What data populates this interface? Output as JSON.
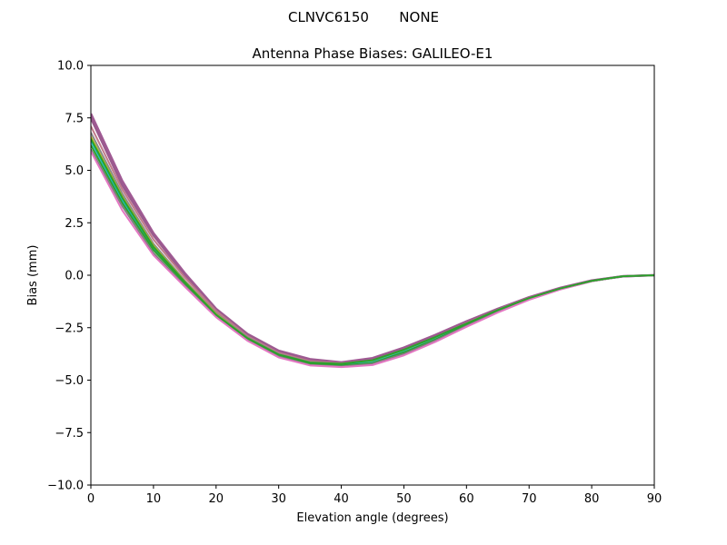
{
  "suptitle": "CLNVC6150       NONE",
  "chart_data": {
    "type": "line",
    "title": "Antenna Phase Biases: GALILEO-E1",
    "xlabel": "Elevation angle (degrees)",
    "ylabel": "Bias (mm)",
    "xlim": [
      0,
      90
    ],
    "ylim": [
      -10,
      10
    ],
    "xticks": [
      0,
      10,
      20,
      30,
      40,
      50,
      60,
      70,
      80,
      90
    ],
    "yticks": [
      -10.0,
      -7.5,
      -5.0,
      -2.5,
      0.0,
      2.5,
      5.0,
      7.5,
      10.0
    ],
    "xtick_labels": [
      "0",
      "10",
      "20",
      "30",
      "40",
      "50",
      "60",
      "70",
      "80",
      "90"
    ],
    "ytick_labels": [
      "−10.0",
      "−7.5",
      "−5.0",
      "−2.5",
      "0.0",
      "2.5",
      "5.0",
      "7.5",
      "10.0"
    ],
    "grid": false,
    "legend": false,
    "x": [
      0,
      5,
      10,
      15,
      20,
      25,
      30,
      35,
      40,
      45,
      50,
      55,
      60,
      65,
      70,
      75,
      80,
      85,
      90
    ],
    "series": [
      {
        "color": "#a05a94",
        "values": [
          7.7,
          4.5,
          2.0,
          0.1,
          -1.6,
          -2.8,
          -3.6,
          -4.0,
          -4.15,
          -3.95,
          -3.45,
          -2.85,
          -2.2,
          -1.6,
          -1.05,
          -0.6,
          -0.25,
          -0.05,
          0.0
        ]
      },
      {
        "color": "#9a5a8e",
        "values": [
          7.5,
          4.3,
          1.9,
          0.0,
          -1.65,
          -2.85,
          -3.65,
          -4.05,
          -4.2,
          -4.0,
          -3.5,
          -2.9,
          -2.25,
          -1.62,
          -1.07,
          -0.62,
          -0.26,
          -0.05,
          0.0
        ]
      },
      {
        "color": "#c07a8a",
        "values": [
          7.1,
          4.1,
          1.7,
          -0.1,
          -1.7,
          -2.9,
          -3.7,
          -4.1,
          -4.2,
          -4.05,
          -3.55,
          -2.95,
          -2.28,
          -1.65,
          -1.08,
          -0.63,
          -0.27,
          -0.05,
          0.0
        ]
      },
      {
        "color": "#8a8a8a",
        "values": [
          6.8,
          3.9,
          1.5,
          -0.25,
          -1.8,
          -2.95,
          -3.75,
          -4.15,
          -4.25,
          -4.1,
          -3.6,
          -3.0,
          -2.32,
          -1.68,
          -1.1,
          -0.64,
          -0.27,
          -0.05,
          0.0
        ]
      },
      {
        "color": "#bcbd22",
        "values": [
          6.6,
          3.75,
          1.4,
          -0.3,
          -1.85,
          -3.0,
          -3.78,
          -4.18,
          -4.25,
          -4.12,
          -3.62,
          -3.02,
          -2.34,
          -1.7,
          -1.11,
          -0.65,
          -0.28,
          -0.05,
          0.0
        ]
      },
      {
        "color": "#17becf",
        "values": [
          6.4,
          3.6,
          1.3,
          -0.35,
          -1.9,
          -3.02,
          -3.8,
          -4.2,
          -4.28,
          -4.15,
          -3.65,
          -3.05,
          -2.36,
          -1.71,
          -1.12,
          -0.65,
          -0.28,
          -0.05,
          0.0
        ]
      },
      {
        "color": "#2ca02c",
        "values": [
          6.2,
          3.45,
          1.2,
          -0.4,
          -1.92,
          -3.05,
          -3.82,
          -4.22,
          -4.3,
          -4.18,
          -3.68,
          -3.07,
          -2.38,
          -1.72,
          -1.13,
          -0.66,
          -0.28,
          -0.05,
          0.0
        ]
      },
      {
        "color": "#7f7f7f",
        "values": [
          6.0,
          3.3,
          1.05,
          -0.5,
          -1.98,
          -3.1,
          -3.88,
          -4.28,
          -4.35,
          -4.22,
          -3.75,
          -3.12,
          -2.42,
          -1.75,
          -1.15,
          -0.67,
          -0.29,
          -0.05,
          0.0
        ]
      },
      {
        "color": "#e377c2",
        "values": [
          5.9,
          3.1,
          0.95,
          -0.55,
          -2.0,
          -3.12,
          -3.92,
          -4.3,
          -4.38,
          -4.28,
          -3.82,
          -3.18,
          -2.46,
          -1.78,
          -1.17,
          -0.68,
          -0.29,
          -0.05,
          0.0
        ]
      },
      {
        "color": "#2ca02c",
        "values": [
          6.5,
          3.7,
          1.35,
          -0.32,
          -1.88,
          -3.0,
          -3.78,
          -4.16,
          -4.22,
          -4.05,
          -3.55,
          -2.95,
          -2.3,
          -1.66,
          -1.09,
          -0.63,
          -0.27,
          -0.05,
          0.0
        ]
      }
    ]
  }
}
